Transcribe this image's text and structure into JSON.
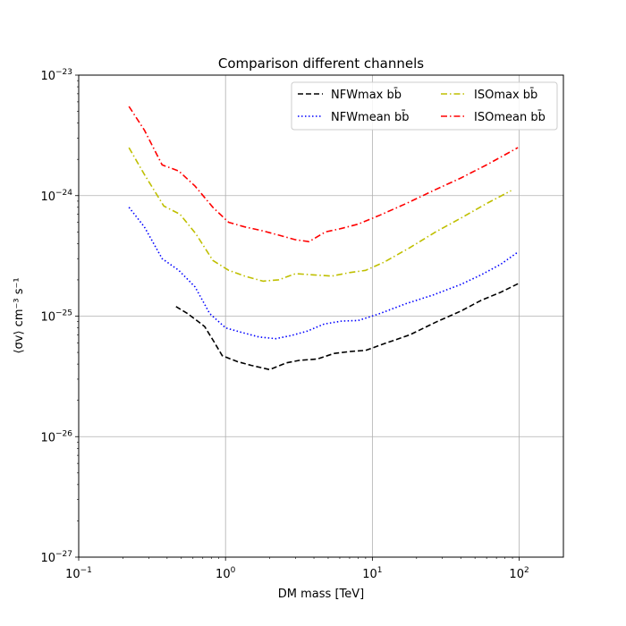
{
  "chart_data": {
    "type": "line",
    "title": "Comparison different channels",
    "xlabel": "DM mass [TeV]",
    "ylabel": "⟨σv⟩ cm⁻³ s⁻¹",
    "xscale": "log",
    "yscale": "log",
    "xlim": [
      0.1,
      200
    ],
    "ylim": [
      1e-27,
      1e-23
    ],
    "grid": true,
    "legend_position": "top-right",
    "legend_columns": 2,
    "x_ticks": [
      {
        "value": 0.1,
        "base": "10",
        "exp": "−1"
      },
      {
        "value": 1,
        "base": "10",
        "exp": "0"
      },
      {
        "value": 10,
        "base": "10",
        "exp": "1"
      },
      {
        "value": 100,
        "base": "10",
        "exp": "2"
      }
    ],
    "y_ticks": [
      {
        "value": 1e-27,
        "base": "10",
        "exp": "−27"
      },
      {
        "value": 1e-26,
        "base": "10",
        "exp": "−26"
      },
      {
        "value": 1e-25,
        "base": "10",
        "exp": "−25"
      },
      {
        "value": 1e-24,
        "base": "10",
        "exp": "−24"
      },
      {
        "value": 1e-23,
        "base": "10",
        "exp": "−23"
      }
    ],
    "series": [
      {
        "name": "NFWmax bb̄",
        "color": "#000000",
        "dash": "dashed",
        "x": [
          0.46,
          0.55,
          0.63,
          0.72,
          0.83,
          0.95,
          1.2,
          1.5,
          2.0,
          2.6,
          3.2,
          4.2,
          5.5,
          7.2,
          9.0,
          12,
          18,
          27,
          40,
          55,
          75,
          100
        ],
        "y": [
          1.2e-25,
          1.05e-25,
          9.3e-26,
          8.2e-26,
          6.2e-26,
          4.7e-26,
          4.2e-26,
          3.9e-26,
          3.6e-26,
          4.1e-26,
          4.3e-26,
          4.4e-26,
          4.9e-26,
          5.1e-26,
          5.2e-26,
          5.9e-26,
          7e-26,
          8.9e-26,
          1.1e-25,
          1.35e-25,
          1.58e-25,
          1.88e-25
        ]
      },
      {
        "name": "NFWmean bb̄",
        "color": "#0000ff",
        "dash": "dotted",
        "x": [
          0.22,
          0.28,
          0.37,
          0.48,
          0.62,
          0.78,
          1.0,
          1.3,
          1.7,
          2.2,
          2.8,
          3.6,
          4.7,
          6.2,
          8.0,
          11,
          17,
          26,
          40,
          55,
          75,
          98
        ],
        "y": [
          8e-25,
          5.5e-25,
          3e-25,
          2.4e-25,
          1.75e-25,
          1.05e-25,
          8e-26,
          7.3e-26,
          6.7e-26,
          6.5e-26,
          6.9e-26,
          7.5e-26,
          8.6e-26,
          9.1e-26,
          9.2e-26,
          1.04e-25,
          1.27e-25,
          1.5e-25,
          1.83e-25,
          2.2e-25,
          2.7e-25,
          3.4e-25
        ]
      },
      {
        "name": "ISOmax bb̄",
        "color": "#bfbf00",
        "dash": "dashdot",
        "x": [
          0.22,
          0.28,
          0.38,
          0.49,
          0.63,
          0.82,
          1.05,
          1.35,
          1.8,
          2.3,
          3.0,
          4.0,
          5.3,
          7.0,
          9.0,
          12,
          18,
          27,
          40,
          60,
          88
        ],
        "y": [
          2.5e-24,
          1.5e-24,
          8.2e-25,
          7e-25,
          4.8e-25,
          2.9e-25,
          2.4e-25,
          2.15e-25,
          1.95e-25,
          2e-25,
          2.25e-25,
          2.2e-25,
          2.15e-25,
          2.3e-25,
          2.4e-25,
          2.8e-25,
          3.7e-25,
          5e-25,
          6.5e-25,
          8.6e-25,
          1.1e-24
        ]
      },
      {
        "name": "ISOmean bb̄",
        "color": "#ff0000",
        "dash": "dashdot",
        "x": [
          0.22,
          0.28,
          0.37,
          0.48,
          0.62,
          0.82,
          1.05,
          1.35,
          1.8,
          2.3,
          3.0,
          3.7,
          4.8,
          6.0,
          8.0,
          11,
          17,
          26,
          40,
          60,
          98
        ],
        "y": [
          5.5e-24,
          3.5e-24,
          1.8e-24,
          1.6e-24,
          1.2e-24,
          8e-25,
          6e-25,
          5.5e-25,
          5.1e-25,
          4.7e-25,
          4.3e-25,
          4.15e-25,
          5e-25,
          5.3e-25,
          5.8e-25,
          6.8e-25,
          8.6e-25,
          1.1e-24,
          1.4e-24,
          1.8e-24,
          2.5e-24
        ]
      }
    ]
  }
}
